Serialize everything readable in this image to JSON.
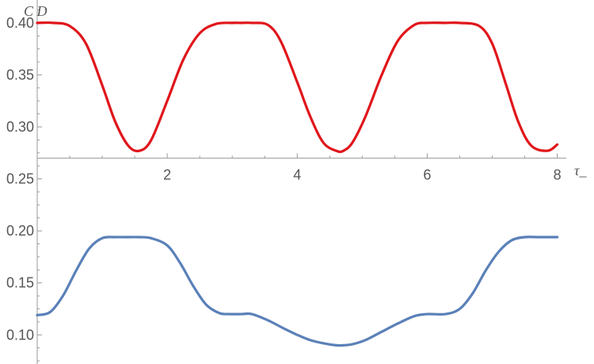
{
  "chart_data": {
    "type": "line",
    "xlabel": "τ_",
    "ylabel": "C D",
    "xlim": [
      0,
      8.2
    ],
    "ylim": [
      0.072,
      0.422
    ],
    "x_axis_crossing_y": 0.27,
    "grid": false,
    "x_ticks": [
      2,
      4,
      6,
      8
    ],
    "x_tick_labels": [
      "2",
      "4",
      "6",
      "8"
    ],
    "y_ticks": [
      0.1,
      0.15,
      0.2,
      0.25,
      0.3,
      0.35,
      0.4
    ],
    "y_tick_labels": [
      "0.10",
      "0.15",
      "0.20",
      "0.25",
      "0.30",
      "0.35",
      "0.40"
    ],
    "series": [
      {
        "color": "#e0161b",
        "x": [
          0.0,
          0.25,
          0.5,
          0.75,
          1.0,
          1.2,
          1.4,
          1.57,
          1.75,
          2.0,
          2.25,
          2.5,
          2.75,
          3.0,
          3.14,
          3.3,
          3.55,
          3.75,
          4.0,
          4.2,
          4.4,
          4.6,
          4.71,
          4.85,
          5.05,
          5.3,
          5.55,
          5.8,
          6.0,
          6.28,
          6.5,
          6.8,
          7.0,
          7.2,
          7.4,
          7.6,
          7.85,
          8.0
        ],
        "values": [
          0.4,
          0.4,
          0.397,
          0.38,
          0.34,
          0.305,
          0.282,
          0.277,
          0.287,
          0.325,
          0.365,
          0.39,
          0.399,
          0.4,
          0.4,
          0.4,
          0.398,
          0.382,
          0.343,
          0.31,
          0.285,
          0.277,
          0.277,
          0.285,
          0.31,
          0.35,
          0.383,
          0.398,
          0.4,
          0.4,
          0.4,
          0.397,
          0.38,
          0.343,
          0.305,
          0.282,
          0.277,
          0.283
        ]
      },
      {
        "color": "#5a80b8",
        "x": [
          0.0,
          0.2,
          0.4,
          0.6,
          0.8,
          1.0,
          1.2,
          1.4,
          1.57,
          1.75,
          2.0,
          2.2,
          2.4,
          2.6,
          2.8,
          2.95,
          3.14,
          3.3,
          3.55,
          3.8,
          4.0,
          4.2,
          4.4,
          4.6,
          4.71,
          4.85,
          5.05,
          5.3,
          5.55,
          5.8,
          6.0,
          6.28,
          6.5,
          6.7,
          6.9,
          7.1,
          7.3,
          7.5,
          7.7,
          7.85,
          8.0
        ],
        "values": [
          0.119,
          0.122,
          0.138,
          0.162,
          0.183,
          0.193,
          0.194,
          0.194,
          0.194,
          0.193,
          0.186,
          0.169,
          0.147,
          0.129,
          0.121,
          0.12,
          0.12,
          0.12,
          0.114,
          0.106,
          0.1,
          0.095,
          0.092,
          0.09,
          0.09,
          0.091,
          0.095,
          0.103,
          0.111,
          0.118,
          0.12,
          0.12,
          0.125,
          0.14,
          0.162,
          0.18,
          0.191,
          0.194,
          0.194,
          0.194,
          0.194
        ]
      }
    ]
  }
}
